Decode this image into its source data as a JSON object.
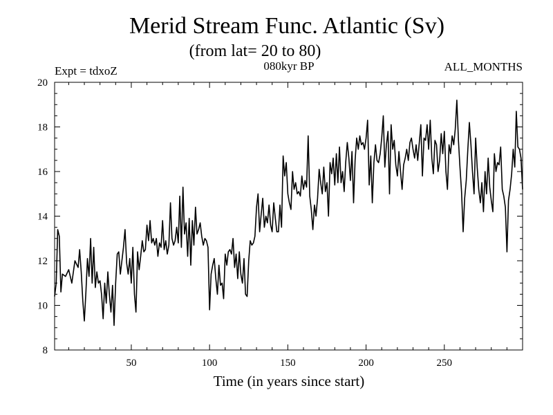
{
  "chart_data": {
    "type": "line",
    "title": "Merid Stream Func. Atlantic (Sv)",
    "subtitle": "(from lat= 20 to 80)",
    "experiment_label": "Expt = tdxoZ",
    "period_label": "080kyr BP",
    "months_label": "ALL_MONTHS",
    "xlabel": "Time (in years since start)",
    "ylabel": "",
    "xlim": [
      1,
      300
    ],
    "ylim": [
      8,
      20
    ],
    "x_ticks": [
      50,
      100,
      150,
      200,
      250
    ],
    "y_ticks": [
      8,
      10,
      12,
      14,
      16,
      18,
      20
    ],
    "x_minor_step": 10,
    "y_minor_step": 0.5,
    "series": [
      {
        "name": "Merid Stream Func. Atlantic",
        "color": "#000000",
        "anchors": [
          [
            1,
            10.4
          ],
          [
            2,
            11.0
          ],
          [
            3,
            13.4
          ],
          [
            4,
            13.1
          ],
          [
            5,
            10.6
          ],
          [
            6,
            11.4
          ],
          [
            8,
            11.3
          ],
          [
            10,
            11.6
          ],
          [
            12,
            11.0
          ],
          [
            14,
            12.0
          ],
          [
            16,
            11.7
          ],
          [
            17,
            12.5
          ],
          [
            18,
            11.5
          ],
          [
            19,
            10.2
          ],
          [
            20,
            9.3
          ],
          [
            21,
            10.6
          ],
          [
            22,
            12.1
          ],
          [
            23,
            11.3
          ],
          [
            24,
            13.0
          ],
          [
            25,
            11.0
          ],
          [
            26,
            12.6
          ],
          [
            27,
            10.8
          ],
          [
            28,
            11.5
          ],
          [
            29,
            11.0
          ],
          [
            30,
            11.1
          ],
          [
            31,
            10.5
          ],
          [
            32,
            9.4
          ],
          [
            33,
            11.0
          ],
          [
            34,
            10.1
          ],
          [
            35,
            11.5
          ],
          [
            36,
            10.5
          ],
          [
            37,
            9.7
          ],
          [
            38,
            10.9
          ],
          [
            39,
            9.1
          ],
          [
            40,
            11.0
          ],
          [
            41,
            12.3
          ],
          [
            42,
            12.4
          ],
          [
            43,
            11.4
          ],
          [
            45,
            12.6
          ],
          [
            46,
            13.4
          ],
          [
            47,
            11.9
          ],
          [
            48,
            11.4
          ],
          [
            49,
            12.1
          ],
          [
            50,
            11.0
          ],
          [
            51,
            12.6
          ],
          [
            52,
            10.5
          ],
          [
            53,
            9.7
          ],
          [
            54,
            12.4
          ],
          [
            55,
            11.6
          ],
          [
            56,
            12.2
          ],
          [
            57,
            12.9
          ],
          [
            58,
            12.4
          ],
          [
            59,
            12.5
          ],
          [
            60,
            13.6
          ],
          [
            61,
            12.9
          ],
          [
            62,
            13.8
          ],
          [
            63,
            12.8
          ],
          [
            64,
            13.0
          ],
          [
            65,
            12.7
          ],
          [
            66,
            13.0
          ],
          [
            67,
            12.2
          ],
          [
            68,
            12.8
          ],
          [
            69,
            12.6
          ],
          [
            70,
            13.8
          ],
          [
            71,
            12.5
          ],
          [
            72,
            12.9
          ],
          [
            73,
            12.3
          ],
          [
            74,
            12.7
          ],
          [
            75,
            14.6
          ],
          [
            76,
            13.0
          ],
          [
            77,
            12.7
          ],
          [
            78,
            12.9
          ],
          [
            79,
            13.5
          ],
          [
            80,
            12.8
          ],
          [
            81,
            14.9
          ],
          [
            82,
            12.6
          ],
          [
            83,
            15.3
          ],
          [
            84,
            13.2
          ],
          [
            85,
            13.7
          ],
          [
            86,
            12.2
          ],
          [
            87,
            13.9
          ],
          [
            88,
            11.8
          ],
          [
            89,
            13.8
          ],
          [
            90,
            12.7
          ],
          [
            91,
            14.4
          ],
          [
            92,
            13.2
          ],
          [
            93,
            13.4
          ],
          [
            94,
            13.7
          ],
          [
            95,
            13.1
          ],
          [
            96,
            12.7
          ],
          [
            97,
            13.0
          ],
          [
            98,
            12.9
          ],
          [
            99,
            12.6
          ],
          [
            100,
            9.8
          ],
          [
            101,
            11.4
          ],
          [
            102,
            11.8
          ],
          [
            103,
            12.1
          ],
          [
            104,
            11.2
          ],
          [
            105,
            10.5
          ],
          [
            106,
            11.8
          ],
          [
            107,
            10.9
          ],
          [
            108,
            11.0
          ],
          [
            109,
            10.3
          ],
          [
            110,
            12.3
          ],
          [
            111,
            11.8
          ],
          [
            112,
            12.4
          ],
          [
            113,
            12.5
          ],
          [
            114,
            12.3
          ],
          [
            115,
            13.0
          ],
          [
            116,
            11.7
          ],
          [
            117,
            12.3
          ],
          [
            118,
            11.2
          ],
          [
            119,
            12.4
          ],
          [
            120,
            11.4
          ],
          [
            121,
            11.0
          ],
          [
            122,
            12.1
          ],
          [
            123,
            10.5
          ],
          [
            124,
            10.4
          ],
          [
            125,
            12.0
          ],
          [
            126,
            12.9
          ],
          [
            127,
            12.7
          ],
          [
            128,
            12.8
          ],
          [
            129,
            13.1
          ],
          [
            130,
            14.4
          ],
          [
            131,
            15.0
          ],
          [
            132,
            13.3
          ],
          [
            133,
            14.1
          ],
          [
            134,
            14.8
          ],
          [
            135,
            13.5
          ],
          [
            136,
            14.0
          ],
          [
            137,
            13.7
          ],
          [
            138,
            14.5
          ],
          [
            139,
            13.6
          ],
          [
            140,
            13.3
          ],
          [
            141,
            14.6
          ],
          [
            142,
            13.9
          ],
          [
            143,
            13.3
          ],
          [
            144,
            13.3
          ],
          [
            145,
            14.5
          ],
          [
            146,
            13.5
          ],
          [
            147,
            16.7
          ],
          [
            148,
            15.8
          ],
          [
            149,
            16.4
          ],
          [
            150,
            15.0
          ],
          [
            151,
            14.6
          ],
          [
            152,
            14.3
          ],
          [
            153,
            16.0
          ],
          [
            154,
            15.2
          ],
          [
            155,
            15.5
          ],
          [
            156,
            15.0
          ],
          [
            157,
            15.1
          ],
          [
            158,
            14.9
          ],
          [
            159,
            15.8
          ],
          [
            160,
            15.2
          ],
          [
            161,
            15.6
          ],
          [
            162,
            15.3
          ],
          [
            163,
            17.6
          ],
          [
            164,
            14.9
          ],
          [
            165,
            14.3
          ],
          [
            166,
            13.4
          ],
          [
            167,
            14.5
          ],
          [
            168,
            14.0
          ],
          [
            169,
            14.8
          ],
          [
            170,
            16.1
          ],
          [
            171,
            15.5
          ],
          [
            172,
            15.0
          ],
          [
            173,
            16.2
          ],
          [
            174,
            15.1
          ],
          [
            175,
            15.5
          ],
          [
            176,
            14.0
          ],
          [
            177,
            16.4
          ],
          [
            178,
            15.9
          ],
          [
            179,
            16.6
          ],
          [
            180,
            15.4
          ],
          [
            181,
            16.8
          ],
          [
            182,
            15.5
          ],
          [
            183,
            17.1
          ],
          [
            184,
            15.5
          ],
          [
            185,
            16.0
          ],
          [
            186,
            15.1
          ],
          [
            187,
            16.4
          ],
          [
            188,
            17.3
          ],
          [
            189,
            16.6
          ],
          [
            190,
            15.6
          ],
          [
            191,
            16.9
          ],
          [
            192,
            14.6
          ],
          [
            193,
            16.5
          ],
          [
            194,
            17.5
          ],
          [
            195,
            17.0
          ],
          [
            196,
            17.6
          ],
          [
            197,
            17.2
          ],
          [
            198,
            17.3
          ],
          [
            199,
            17.0
          ],
          [
            200,
            17.5
          ],
          [
            201,
            18.3
          ],
          [
            202,
            15.4
          ],
          [
            203,
            16.7
          ],
          [
            204,
            14.6
          ],
          [
            205,
            16.4
          ],
          [
            206,
            17.2
          ],
          [
            207,
            16.5
          ],
          [
            208,
            16.4
          ],
          [
            209,
            16.8
          ],
          [
            210,
            17.5
          ],
          [
            211,
            18.5
          ],
          [
            212,
            16.2
          ],
          [
            213,
            17.2
          ],
          [
            214,
            17.8
          ],
          [
            215,
            15.0
          ],
          [
            216,
            18.1
          ],
          [
            217,
            17.0
          ],
          [
            218,
            17.4
          ],
          [
            219,
            16.3
          ],
          [
            220,
            15.8
          ],
          [
            221,
            16.9
          ],
          [
            222,
            16.0
          ],
          [
            223,
            15.2
          ],
          [
            224,
            16.3
          ],
          [
            225,
            16.6
          ],
          [
            226,
            17.0
          ],
          [
            227,
            16.5
          ],
          [
            228,
            17.3
          ],
          [
            229,
            17.5
          ],
          [
            230,
            17.0
          ],
          [
            231,
            16.6
          ],
          [
            232,
            17.2
          ],
          [
            233,
            16.5
          ],
          [
            234,
            17.3
          ],
          [
            235,
            18.1
          ],
          [
            236,
            15.8
          ],
          [
            237,
            17.5
          ],
          [
            238,
            17.4
          ],
          [
            239,
            18.1
          ],
          [
            240,
            17.0
          ],
          [
            241,
            18.3
          ],
          [
            242,
            16.6
          ],
          [
            243,
            15.9
          ],
          [
            244,
            17.4
          ],
          [
            245,
            17.2
          ],
          [
            246,
            16.0
          ],
          [
            247,
            16.5
          ],
          [
            248,
            17.7
          ],
          [
            249,
            16.8
          ],
          [
            250,
            17.8
          ],
          [
            251,
            16.0
          ],
          [
            252,
            15.2
          ],
          [
            253,
            17.2
          ],
          [
            254,
            16.8
          ],
          [
            255,
            17.6
          ],
          [
            256,
            17.2
          ],
          [
            257,
            17.9
          ],
          [
            258,
            19.2
          ],
          [
            259,
            17.4
          ],
          [
            260,
            16.2
          ],
          [
            261,
            15.1
          ],
          [
            262,
            13.3
          ],
          [
            263,
            14.8
          ],
          [
            264,
            15.6
          ],
          [
            265,
            17.0
          ],
          [
            266,
            18.2
          ],
          [
            267,
            17.2
          ],
          [
            268,
            16.0
          ],
          [
            269,
            15.0
          ],
          [
            270,
            17.5
          ],
          [
            271,
            16.2
          ],
          [
            272,
            15.2
          ],
          [
            273,
            14.6
          ],
          [
            274,
            15.5
          ],
          [
            275,
            14.2
          ],
          [
            276,
            16.0
          ],
          [
            277,
            15.0
          ],
          [
            278,
            16.6
          ],
          [
            279,
            15.3
          ],
          [
            280,
            14.7
          ],
          [
            281,
            14.2
          ],
          [
            282,
            16.8
          ],
          [
            283,
            16.0
          ],
          [
            284,
            16.4
          ],
          [
            285,
            16.3
          ],
          [
            286,
            17.1
          ],
          [
            287,
            15.2
          ],
          [
            288,
            14.9
          ],
          [
            289,
            14.4
          ],
          [
            290,
            12.4
          ],
          [
            291,
            14.7
          ],
          [
            292,
            15.2
          ],
          [
            293,
            15.9
          ],
          [
            294,
            17.0
          ],
          [
            295,
            16.2
          ],
          [
            296,
            18.7
          ],
          [
            297,
            17.1
          ],
          [
            298,
            17.0
          ],
          [
            299,
            16.6
          ],
          [
            300,
            15.2
          ]
        ]
      }
    ]
  }
}
